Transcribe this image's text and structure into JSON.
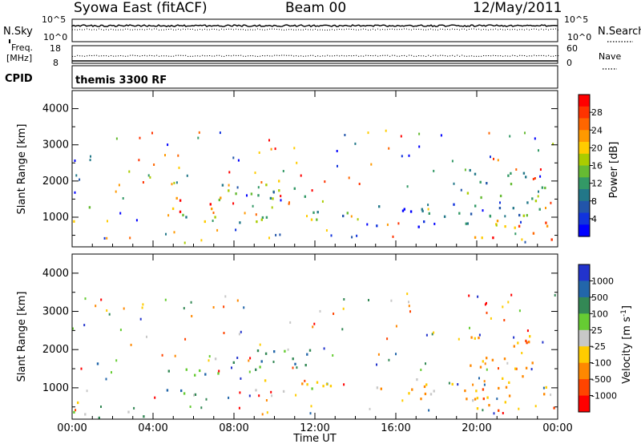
{
  "header": {
    "station": "Syowa East (fitACF)",
    "beam": "Beam 00",
    "date": "12/May/2011"
  },
  "status_panels": {
    "nsky_label": "N.Sky",
    "nsearch_label": "N.Search",
    "nsky_ticks": [
      "10^5",
      "10^0"
    ],
    "nsearch_ticks": [
      "10^5",
      "10^0"
    ],
    "freq_label_line1": "Freq.",
    "freq_label_line2": "[MHz]",
    "freq_ticks": [
      "18",
      "8"
    ],
    "nave_label": "Nave",
    "nave_ticks": [
      "60",
      "0"
    ],
    "cpid_label": "CPID",
    "cpid_value": "themis 3300 RF"
  },
  "chart_data": [
    {
      "type": "heatmap",
      "title": "",
      "xlabel": "Time UT",
      "ylabel": "Slant Range [km]",
      "xlim": [
        0,
        24
      ],
      "ylim": [
        180,
        4500
      ],
      "x_ticks": [
        "00:00",
        "04:00",
        "08:00",
        "12:00",
        "16:00",
        "20:00",
        "00:00"
      ],
      "y_ticks": [
        "1000",
        "2000",
        "3000",
        "4000"
      ],
      "colorbar_label": "Power [dB]",
      "colorbar_ticks": [
        "28",
        "24",
        "20",
        "16",
        "12",
        "8",
        "4"
      ],
      "colorbar_colors": [
        "#ff0000",
        "#ff3300",
        "#ff6600",
        "#ff9900",
        "#ffcc00",
        "#aacc00",
        "#66bb33",
        "#339966",
        "#227788",
        "#2255aa",
        "#1133dd",
        "#0000ff"
      ],
      "echo_regions": [
        {
          "t": [
            0.0,
            0.5
          ],
          "r": [
            500,
            1000
          ],
          "level": 0.5
        },
        {
          "t": [
            0.8,
            1.4
          ],
          "r": [
            1300,
            1800
          ],
          "level": 0.6
        },
        {
          "t": [
            4.5,
            7.5
          ],
          "r": [
            1100,
            1600
          ],
          "level": 0.8
        },
        {
          "t": [
            4.6,
            12.5
          ],
          "r": [
            850,
            1200
          ],
          "level": 0.45
        },
        {
          "t": [
            7.0,
            12.0
          ],
          "r": [
            1500,
            2100
          ],
          "level": 0.45
        },
        {
          "t": [
            12.0,
            14.0
          ],
          "r": [
            1000,
            1200
          ],
          "level": 0.3
        },
        {
          "t": [
            15.0,
            20.0
          ],
          "r": [
            700,
            1400
          ],
          "level": 0.2
        },
        {
          "t": [
            19.5,
            24.0
          ],
          "r": [
            400,
            1000
          ],
          "level": 0.75
        },
        {
          "t": [
            19.5,
            23.5
          ],
          "r": [
            1000,
            2400
          ],
          "level": 0.4
        }
      ]
    },
    {
      "type": "heatmap",
      "title": "",
      "xlabel": "Time UT",
      "ylabel": "Slant Range [km]",
      "xlim": [
        0,
        24
      ],
      "ylim": [
        180,
        4500
      ],
      "x_ticks": [
        "00:00",
        "04:00",
        "08:00",
        "12:00",
        "16:00",
        "20:00",
        "00:00"
      ],
      "y_ticks": [
        "1000",
        "2000",
        "3000",
        "4000"
      ],
      "colorbar_label": "Velocity [m s^-1]",
      "colorbar_ticks": [
        "1000",
        "500",
        "100",
        "25",
        "-25",
        "-100",
        "-500",
        "-1000"
      ],
      "colorbar_colors": [
        "#2233cc",
        "#2266aa",
        "#338855",
        "#66cc33",
        "#c8c8c8",
        "#ffcc00",
        "#ff8800",
        "#ff4400",
        "#ff0000"
      ],
      "echo_regions": [
        {
          "t": [
            0.0,
            0.5
          ],
          "r": [
            500,
            1000
          ],
          "level": 0.35
        },
        {
          "t": [
            0.8,
            1.4
          ],
          "r": [
            1300,
            1800
          ],
          "level": 0.7
        },
        {
          "t": [
            0.0,
            4.0
          ],
          "r": [
            200,
            450
          ],
          "level": 0.62
        },
        {
          "t": [
            4.5,
            7.5
          ],
          "r": [
            850,
            1600
          ],
          "level": 0.72
        },
        {
          "t": [
            7.0,
            12.0
          ],
          "r": [
            1500,
            2100
          ],
          "level": 0.7
        },
        {
          "t": [
            8.0,
            12.5
          ],
          "r": [
            850,
            1250
          ],
          "level": 0.5
        },
        {
          "t": [
            12.0,
            14.0
          ],
          "r": [
            1000,
            1200
          ],
          "level": 0.55
        },
        {
          "t": [
            15.0,
            20.0
          ],
          "r": [
            700,
            1400
          ],
          "level": 0.38
        },
        {
          "t": [
            19.5,
            24.0
          ],
          "r": [
            400,
            1000
          ],
          "level": 0.28
        },
        {
          "t": [
            19.5,
            23.5
          ],
          "r": [
            1000,
            2400
          ],
          "level": 0.32
        }
      ]
    }
  ]
}
